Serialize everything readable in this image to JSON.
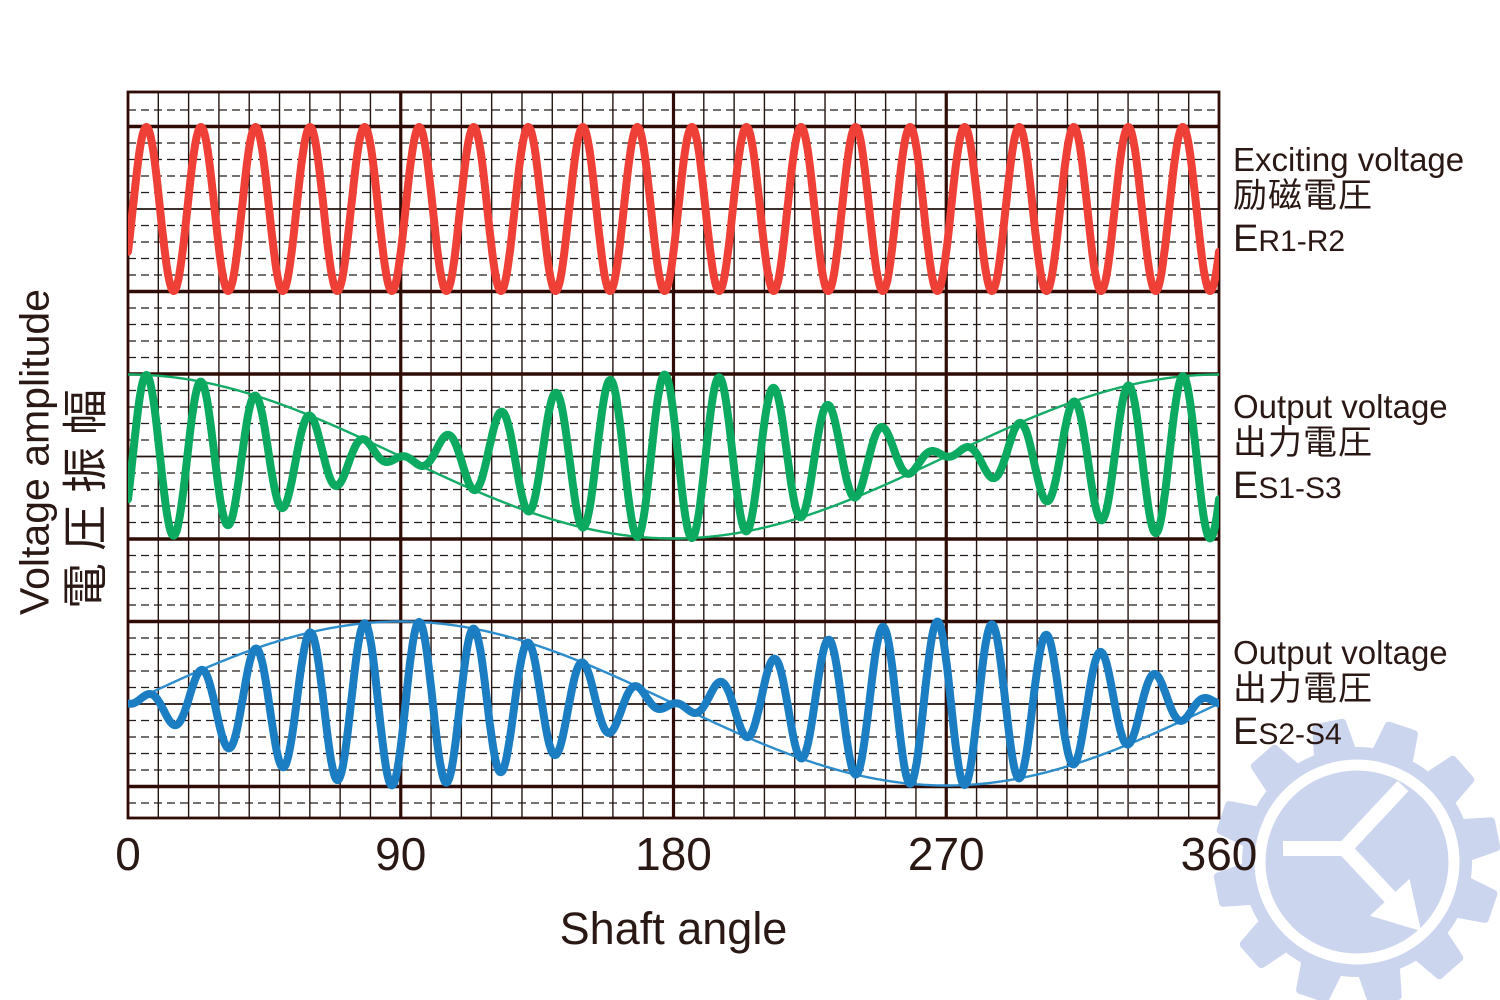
{
  "figure": {
    "description": "Resolver excitation and output voltage waveforms versus shaft angle"
  },
  "chart_data": {
    "type": "line",
    "title": "",
    "x": {
      "label": "Shaft angle",
      "ticks": [
        0,
        90,
        180,
        270,
        360
      ],
      "range_deg": [
        0,
        360
      ],
      "grid_minor_step_deg": 10,
      "grid_major_step_deg": 90
    },
    "y": {
      "label": "Voltage amplitude",
      "label_jp": "電圧振幅",
      "grid": "on"
    },
    "carrier": {
      "cycles_per_rotation": 20,
      "phase_deg": -31.5
    },
    "series": [
      {
        "name": "Exciting voltage",
        "name_jp": "励磁電圧",
        "symbol": "E",
        "subscript": "R1-R2",
        "color": "#ee4036",
        "modulation": "constant",
        "relative_amplitude": 1,
        "row": 0,
        "envelope": false
      },
      {
        "name": "Output voltage",
        "name_jp": "出力電圧",
        "symbol": "E",
        "subscript": "S1-S3",
        "color": "#0caa60",
        "envelope_color": "#14ab67",
        "modulation": "cos",
        "relative_amplitude": 1,
        "row": 1,
        "envelope": true
      },
      {
        "name": "Output voltage",
        "name_jp": "出力電圧",
        "symbol": "E",
        "subscript": "S2-S4",
        "color": "#1b7ec2",
        "envelope_color": "#2e8dcb",
        "modulation": "sin",
        "relative_amplitude": 1,
        "row": 2,
        "envelope": true
      }
    ],
    "legend_position": "right"
  },
  "colors": {
    "background": "#ffffff",
    "grid_thin": "#241511",
    "grid_thick": "#2f0c05",
    "grid_dashed": "#231c18",
    "text": "#2a1814"
  },
  "watermark": {
    "label": "gear-K-logo",
    "color": "#ccd5ee"
  }
}
